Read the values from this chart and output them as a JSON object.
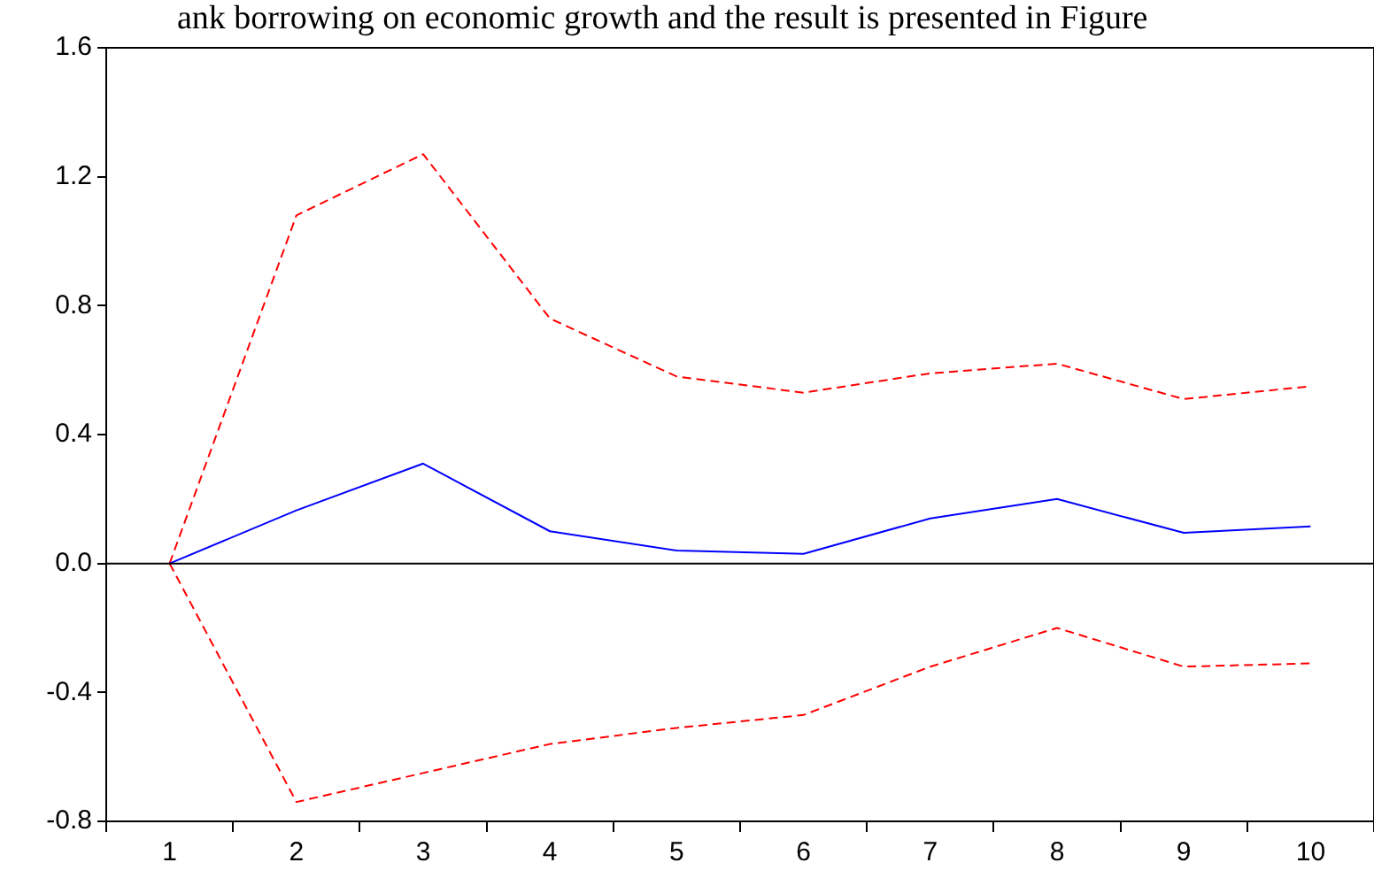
{
  "chart_data": {
    "type": "line",
    "annotations": [
      "ank borrowing on economic growth and the result is presented in Figure"
    ],
    "categories": [
      "1",
      "2",
      "3",
      "4",
      "5",
      "6",
      "7",
      "8",
      "9",
      "10"
    ],
    "ylim": [
      -0.8,
      1.6
    ],
    "yticks": [
      {
        "value": -0.8,
        "label": "-0.8"
      },
      {
        "value": -0.4,
        "label": "-0.4"
      },
      {
        "value": 0,
        "label": "0.0"
      },
      {
        "value": 0.4,
        "label": "0.4"
      },
      {
        "value": 0.8,
        "label": "0.8"
      },
      {
        "value": 1.2,
        "label": "1.2"
      },
      {
        "value": 1.6,
        "label": "1.6"
      }
    ],
    "grid": false,
    "legend": false,
    "marker": "none",
    "ref_lines": [
      {
        "axis": "y",
        "value": 0,
        "color": "#000000"
      }
    ],
    "series": [
      {
        "color": "#0000ff",
        "line_style": "solid",
        "values": [
          0,
          0.165,
          0.31,
          0.1,
          0.04,
          0.03,
          0.14,
          0.2,
          0.095,
          0.115
        ]
      },
      {
        "color": "#ff0000",
        "line_style": "dashed",
        "values": [
          0,
          1.08,
          1.27,
          0.76,
          0.58,
          0.53,
          0.59,
          0.62,
          0.51,
          0.55
        ]
      },
      {
        "color": "#ff0000",
        "line_style": "dashed",
        "values": [
          0,
          -0.74,
          -0.65,
          -0.56,
          -0.51,
          -0.47,
          -0.32,
          -0.2,
          -0.32,
          -0.31
        ]
      }
    ]
  }
}
